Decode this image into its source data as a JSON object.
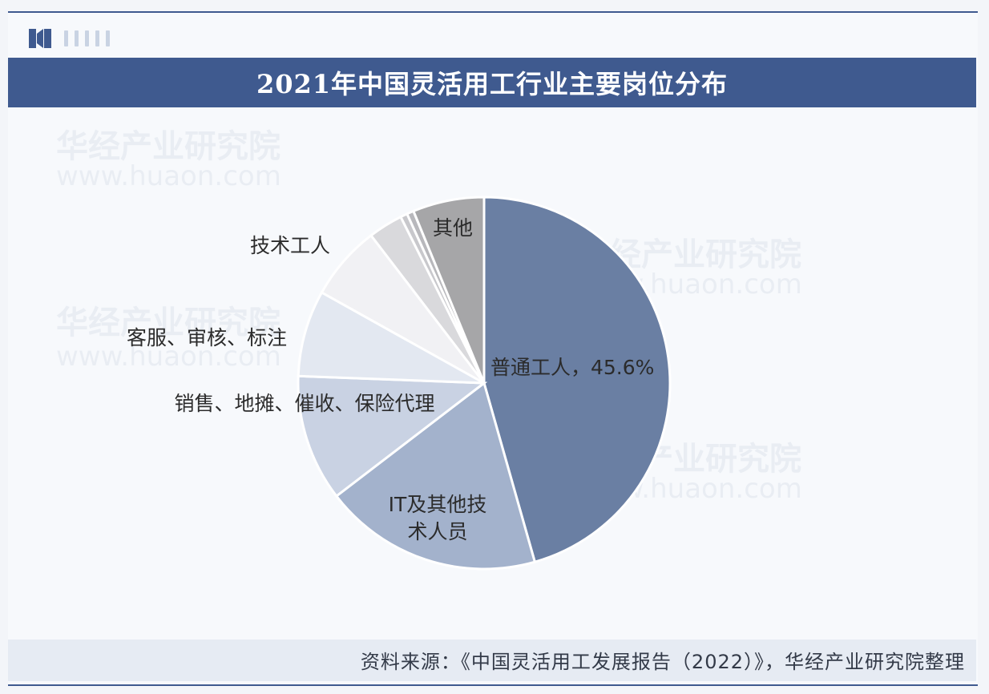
{
  "header": {
    "title": "2021年中国灵活用工行业主要岗位分布"
  },
  "watermarks": [
    "华经产业研究院",
    "www.huaon.com"
  ],
  "chart_data": {
    "type": "pie",
    "title": "2021年中国灵活用工行业主要岗位分布",
    "start_angle_deg": 0,
    "direction": "clockwise",
    "slices": [
      {
        "label": "普通工人，45.6%",
        "value": 45.6,
        "color": "#6a7fa3"
      },
      {
        "label": "IT及其他技术人员",
        "value": 19.0,
        "color": "#a3b2cc"
      },
      {
        "label": "销售、地摊、催收、保险代理",
        "value": 11.0,
        "color": "#c9d2e3"
      },
      {
        "label": "客服、审核、标注",
        "value": 7.5,
        "color": "#e3e8f1"
      },
      {
        "label": "技术工人",
        "value": 6.5,
        "color": "#f1f1f4"
      },
      {
        "label": "",
        "value": 3.0,
        "color": "#d9d9dc"
      },
      {
        "label": "",
        "value": 0.6,
        "color": "#c8c8cc"
      },
      {
        "label": "",
        "value": 0.6,
        "color": "#b8b8bc"
      },
      {
        "label": "其他",
        "value": 6.2,
        "color": "#a6a6a8"
      }
    ]
  },
  "source": {
    "text": "资料来源：《中国灵活用工发展报告（2022）》，华经产业研究院整理"
  },
  "colors": {
    "brand": "#3f5a8f",
    "background": "#f7f9fc"
  }
}
